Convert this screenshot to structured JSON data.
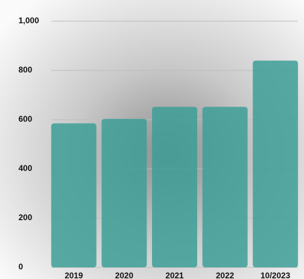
{
  "chart_data": {
    "type": "bar",
    "categories": [
      "2019",
      "2020",
      "2021",
      "2022",
      "10/2023"
    ],
    "values": [
      585,
      603,
      652,
      652,
      840
    ],
    "color": "#3d9f97",
    "ylim": [
      0,
      1000
    ],
    "yticks": [
      0,
      200,
      400,
      600,
      800,
      {
        "value": 1000,
        "label": "1,000"
      }
    ],
    "grid": true
  }
}
